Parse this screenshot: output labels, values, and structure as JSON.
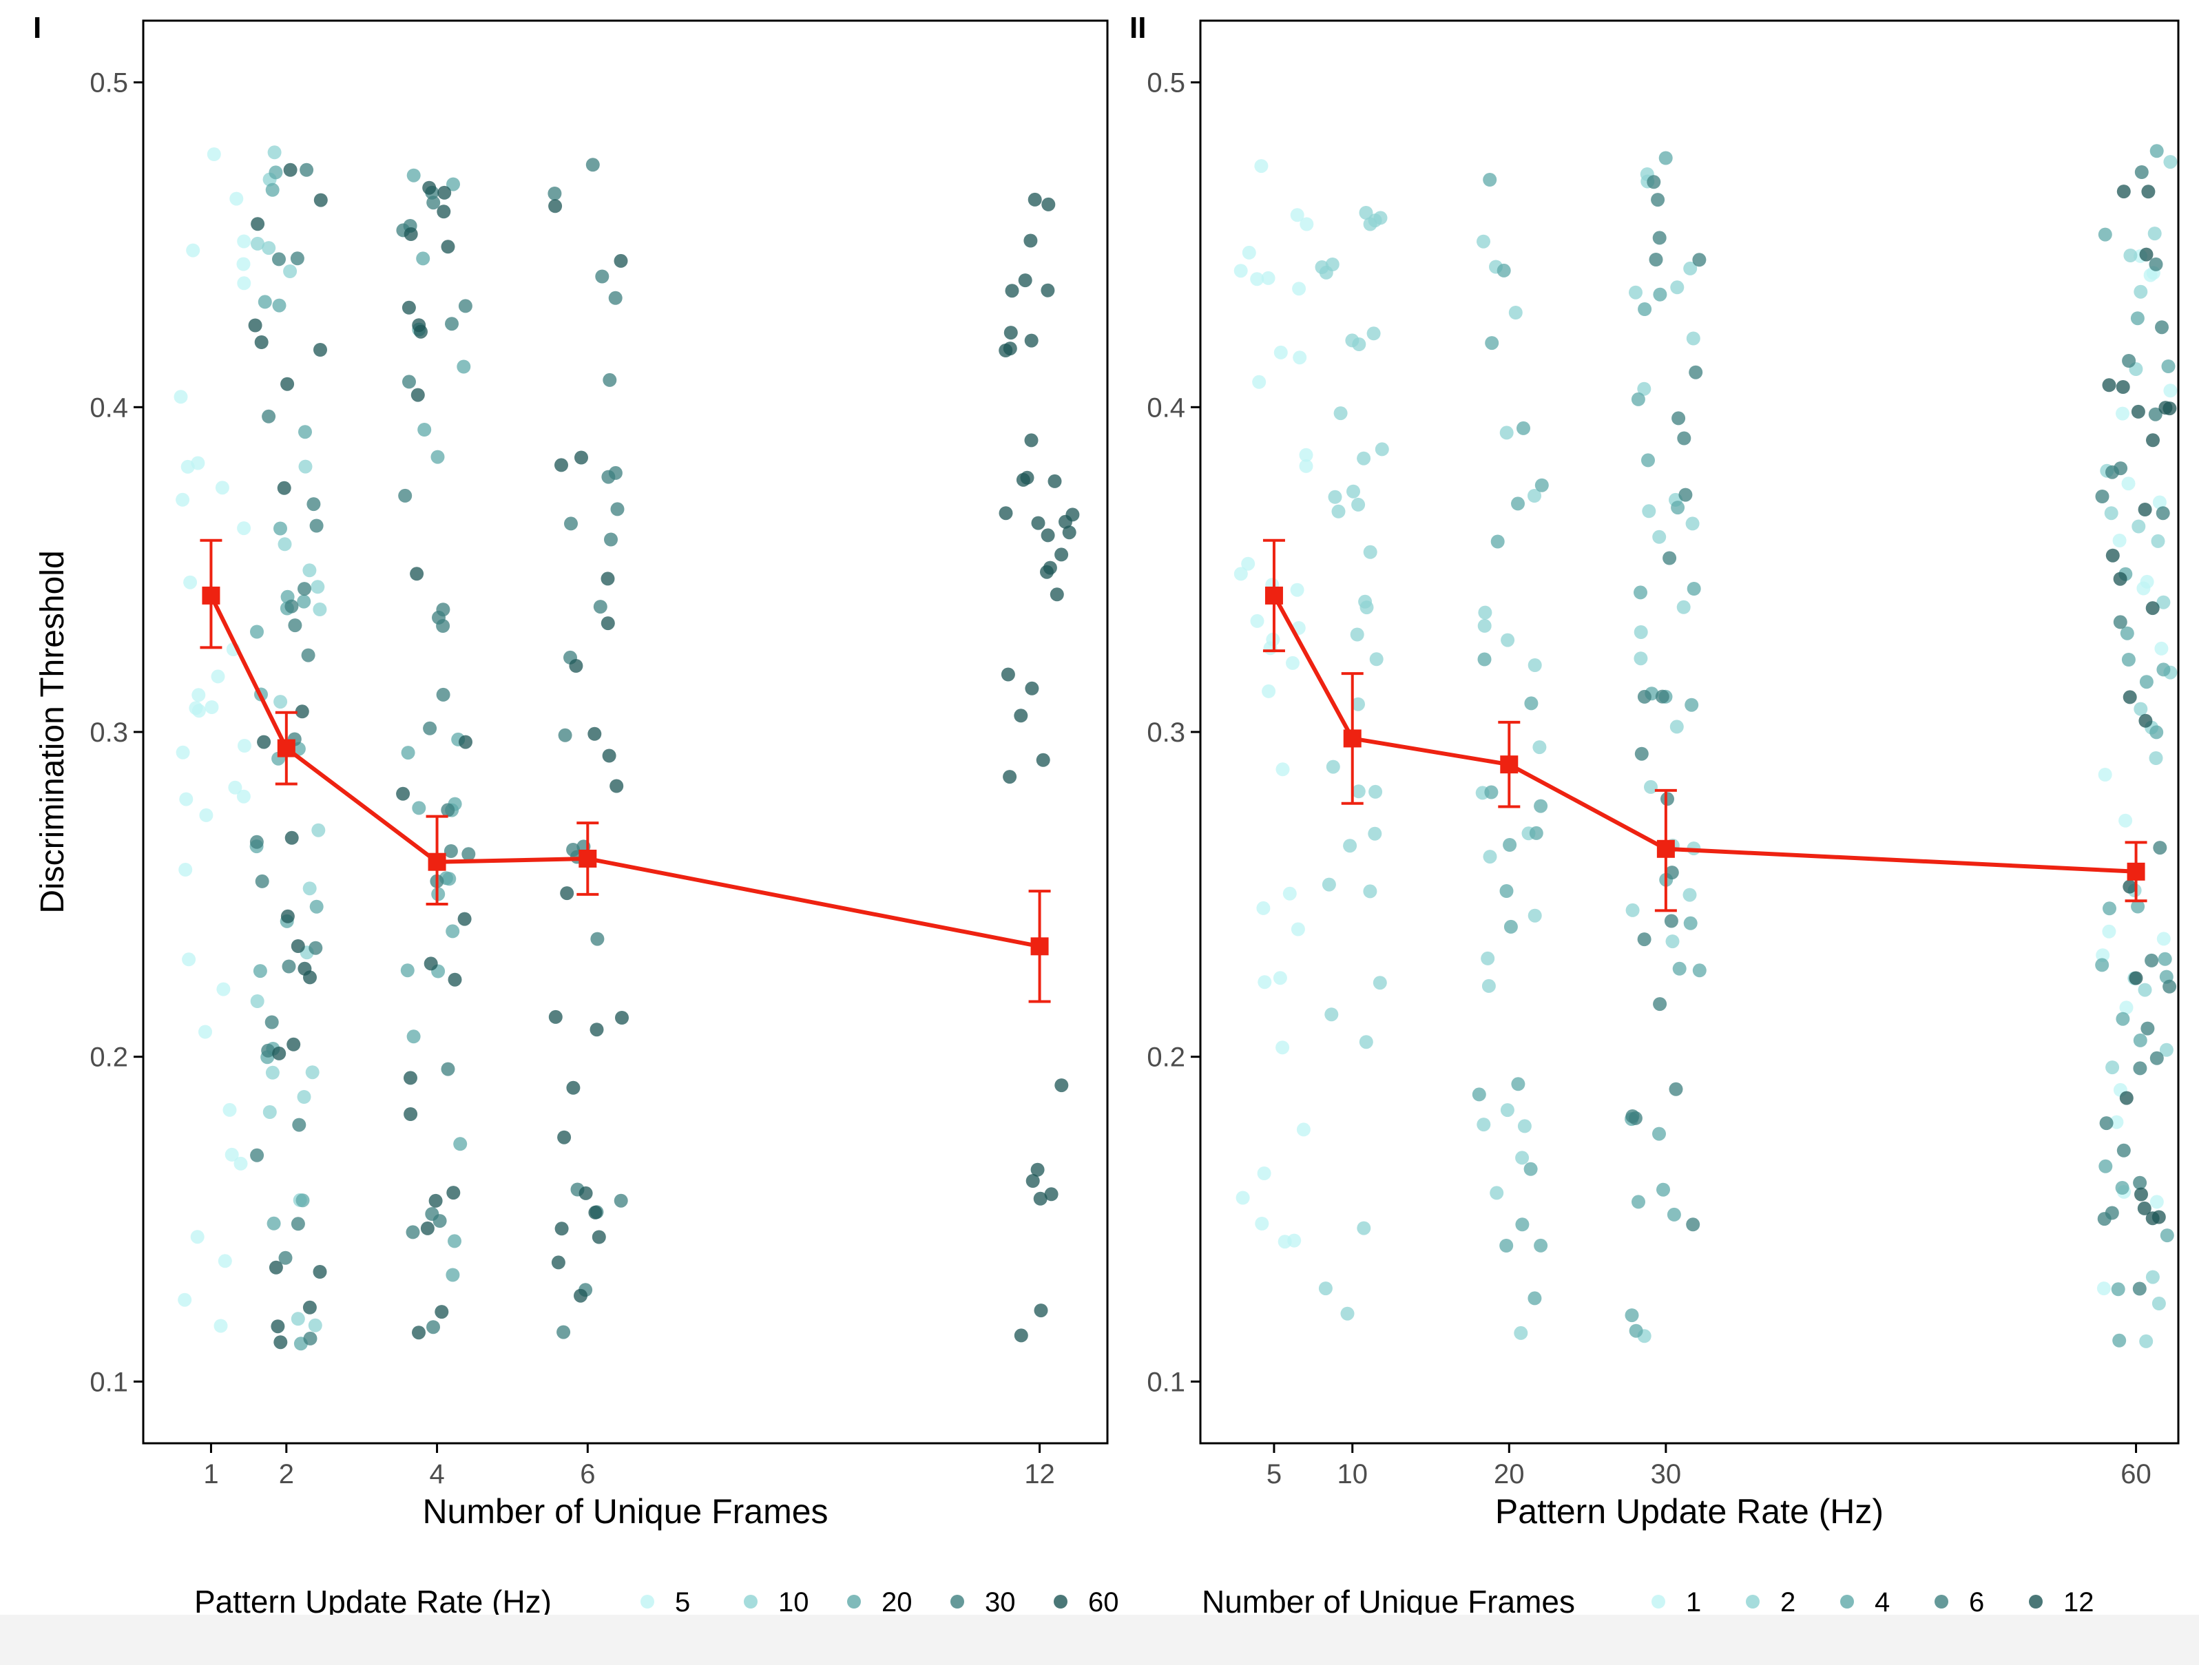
{
  "colors": {
    "c1": "#bff4f4",
    "c2": "#8fd3d3",
    "c3": "#5fa9a9",
    "c4": "#3e7f7f",
    "c5": "#1d5555",
    "summary": "#ee2211",
    "axis": "#000000",
    "tick_text": "#4d4d4d"
  },
  "chart_data": [
    {
      "type": "scatter",
      "panel_label": "I",
      "xlabel": "Number of Unique Frames",
      "ylabel": "Discrimination Threshold",
      "x_ticks": [
        1,
        2,
        4,
        6,
        12
      ],
      "x_tick_labels": [
        "1",
        "2",
        "4",
        "6",
        "12"
      ],
      "xlim": [
        0.1,
        12.9
      ],
      "y_ticks": [
        0.1,
        0.2,
        0.3,
        0.4,
        0.5
      ],
      "y_tick_labels": [
        "0.1",
        "0.2",
        "0.3",
        "0.4",
        "0.5"
      ],
      "ylim": [
        0.081,
        0.519
      ],
      "legend": {
        "title": "Pattern Update Rate (Hz)",
        "position": "bottom",
        "labels": [
          "5",
          "10",
          "20",
          "30",
          "60"
        ]
      },
      "groups": [
        {
          "x": 1,
          "category_values": [
            5
          ]
        },
        {
          "x": 2,
          "category_values": [
            10,
            20,
            30,
            60
          ]
        },
        {
          "x": 4,
          "category_values": [
            20,
            30,
            60
          ]
        },
        {
          "x": 6,
          "category_values": [
            30,
            60
          ]
        },
        {
          "x": 12,
          "category_values": [
            60
          ]
        }
      ],
      "summary": {
        "x": [
          1,
          2,
          4,
          6,
          12
        ],
        "mean": [
          0.342,
          0.295,
          0.26,
          0.261,
          0.234
        ],
        "lower": [
          0.326,
          0.284,
          0.247,
          0.25,
          0.217
        ],
        "upper": [
          0.359,
          0.306,
          0.274,
          0.272,
          0.251
        ]
      }
    },
    {
      "type": "scatter",
      "panel_label": "II",
      "xlabel": "Pattern Update Rate (Hz)",
      "ylabel": "",
      "x_ticks": [
        5,
        10,
        20,
        30,
        60
      ],
      "x_tick_labels": [
        "5",
        "10",
        "20",
        "30",
        "60"
      ],
      "xlim": [
        0.3,
        62.7
      ],
      "y_ticks": [
        0.1,
        0.2,
        0.3,
        0.4,
        0.5
      ],
      "y_tick_labels": [
        "0.1",
        "0.2",
        "0.3",
        "0.4",
        "0.5"
      ],
      "ylim": [
        0.081,
        0.519
      ],
      "legend": {
        "title": "Number of Unique Frames",
        "position": "bottom",
        "labels": [
          "1",
          "2",
          "4",
          "6",
          "12"
        ]
      },
      "groups": [
        {
          "x": 5,
          "category_values": [
            1
          ]
        },
        {
          "x": 10,
          "category_values": [
            2
          ]
        },
        {
          "x": 20,
          "category_values": [
            2,
            4
          ]
        },
        {
          "x": 30,
          "category_values": [
            2,
            4,
            6
          ]
        },
        {
          "x": 60,
          "category_values": [
            1,
            2,
            4,
            6,
            12
          ]
        }
      ],
      "summary": {
        "x": [
          5,
          10,
          20,
          30,
          60
        ],
        "mean": [
          0.342,
          0.298,
          0.29,
          0.264,
          0.257
        ],
        "lower": [
          0.325,
          0.278,
          0.277,
          0.245,
          0.248
        ],
        "upper": [
          0.359,
          0.318,
          0.303,
          0.282,
          0.266
        ]
      }
    }
  ]
}
